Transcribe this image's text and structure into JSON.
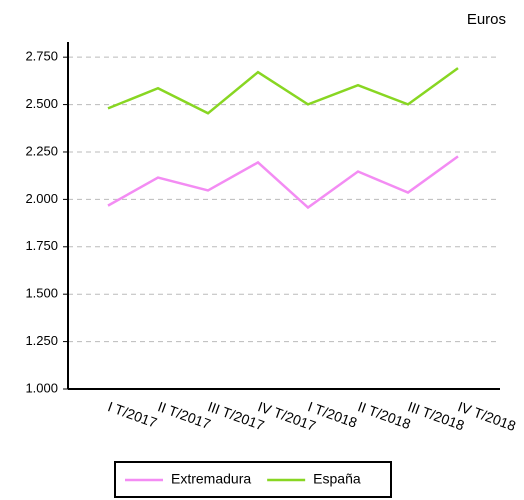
{
  "chart_data": {
    "type": "line",
    "y_label": "Euros",
    "categories": [
      "I T/2017",
      "II T/2017",
      "III T/2017",
      "IV T/2017",
      "I T/2018",
      "II T/2018",
      "III T/2018",
      "IV T/2018"
    ],
    "series": [
      {
        "name": "Extremadura",
        "color": "#f38cf3",
        "values": [
          1967,
          2115,
          2047,
          2195,
          1957,
          2147,
          2036,
          2227
        ]
      },
      {
        "name": "España",
        "color": "#88d622",
        "values": [
          2480,
          2586,
          2454,
          2671,
          2501,
          2602,
          2501,
          2692
        ]
      }
    ],
    "ylim": [
      1000,
      2830
    ],
    "yticks": [
      {
        "value": 1000,
        "label": "1.000"
      },
      {
        "value": 1250,
        "label": "1.250"
      },
      {
        "value": 1500,
        "label": "1.500"
      },
      {
        "value": 1750,
        "label": "1.750"
      },
      {
        "value": 2000,
        "label": "2.000"
      },
      {
        "value": 2250,
        "label": "2.250"
      },
      {
        "value": 2500,
        "label": "2.500"
      },
      {
        "value": 2750,
        "label": "2.750"
      }
    ],
    "grid": true,
    "legend": "bottom"
  }
}
